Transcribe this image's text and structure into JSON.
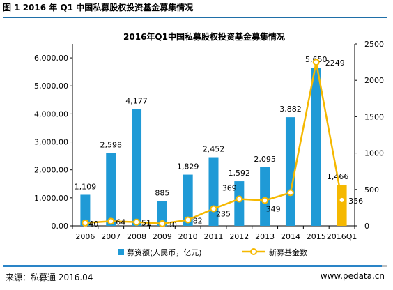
{
  "caption": "图 1 2016 年 Q1 中国私募股权投资基金募集情况",
  "footer": {
    "source": "来源：私募通 2016.04",
    "site": "www.pedata.cn"
  },
  "colors": {
    "bar": "#1f9ad6",
    "bar_highlight": "#f5b800",
    "line": "#f5b800",
    "marker_fill": "#ffffff",
    "rule_blue": "#2a84c7"
  },
  "chart_data": {
    "type": "bar",
    "title": "2016年Q1中国私募股权投资基金募集情况",
    "categories": [
      "2006",
      "2007",
      "2008",
      "2009",
      "2010",
      "2011",
      "2012",
      "2013",
      "2014",
      "2015",
      "2016Q1"
    ],
    "series": [
      {
        "name": "募资额(人民币，亿元)",
        "type": "bar",
        "axis": "left",
        "values": [
          1109,
          2598,
          4177,
          885,
          1829,
          2452,
          1592,
          2095,
          3882,
          5650,
          1466
        ],
        "labels": [
          "1,109",
          "2,598",
          "4,177",
          "885",
          "1,829",
          "2,452",
          "1,592",
          "2,095",
          "3,882",
          "5,650",
          "1,466"
        ]
      },
      {
        "name": "新募基金数",
        "type": "line",
        "axis": "right",
        "values": [
          40,
          64,
          51,
          30,
          82,
          235,
          369,
          349,
          456,
          2249,
          356
        ],
        "labels": [
          "40",
          "64",
          "51",
          "30",
          "82",
          "235",
          "369",
          "349",
          "",
          "2249",
          "356"
        ]
      }
    ],
    "y_left": {
      "range": [
        0,
        6500
      ],
      "ticks": [
        0,
        1000,
        2000,
        3000,
        4000,
        5000,
        6000
      ],
      "tick_labels": [
        "0.00",
        "1,000.00",
        "2,000.00",
        "3,000.00",
        "4,000.00",
        "5,000.00",
        "6,000.00"
      ]
    },
    "y_right": {
      "range": [
        0,
        2500
      ],
      "ticks": [
        0,
        500,
        1000,
        1500,
        2000,
        2500
      ],
      "tick_labels": [
        "0",
        "500",
        "1000",
        "1500",
        "2000",
        "2500"
      ]
    },
    "grid": false,
    "legend_position": "bottom"
  }
}
